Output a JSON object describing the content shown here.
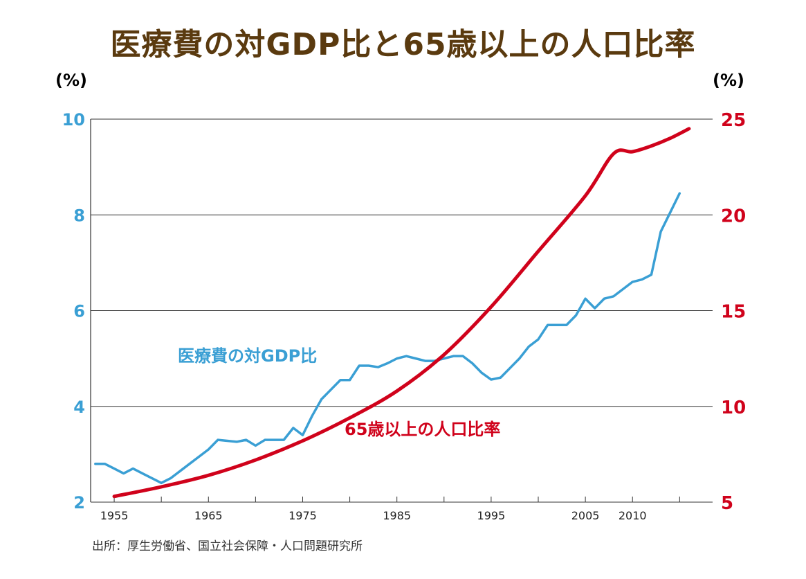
{
  "chart_data": {
    "type": "line",
    "title": "医療費の対GDP比と65歳以上の人口比率",
    "source": "出所：厚生労働省、国立社会保障・人口問題研究所",
    "y_left": {
      "unit": "(%)",
      "range": [
        2,
        10
      ],
      "ticks": [
        "2",
        "4",
        "6",
        "8",
        "10"
      ],
      "color": "#3a9fd4"
    },
    "y_right": {
      "unit": "(%)",
      "range": [
        5,
        25
      ],
      "ticks": [
        "5",
        "10",
        "15",
        "20",
        "25"
      ],
      "color": "#d0021b"
    },
    "x_range": [
      1952.5,
      2018.5
    ],
    "x_ticks": [
      "1955",
      "1965",
      "1975",
      "1985",
      "1995",
      "2005",
      "2010"
    ],
    "grid": true,
    "series": [
      {
        "name": "医療費の対GDP比",
        "axis": "left",
        "color": "#3a9fd4",
        "points": [
          [
            1953,
            2.8
          ],
          [
            1954,
            2.8
          ],
          [
            1955,
            2.7
          ],
          [
            1956,
            2.6
          ],
          [
            1957,
            2.7
          ],
          [
            1958,
            2.6
          ],
          [
            1959,
            2.5
          ],
          [
            1960,
            2.4
          ],
          [
            1961,
            2.5
          ],
          [
            1962,
            2.65
          ],
          [
            1963,
            2.8
          ],
          [
            1964,
            2.95
          ],
          [
            1965,
            3.1
          ],
          [
            1966,
            3.3
          ],
          [
            1967,
            3.28
          ],
          [
            1968,
            3.26
          ],
          [
            1969,
            3.3
          ],
          [
            1970,
            3.18
          ],
          [
            1971,
            3.3
          ],
          [
            1972,
            3.3
          ],
          [
            1973,
            3.3
          ],
          [
            1974,
            3.55
          ],
          [
            1975,
            3.4
          ],
          [
            1976,
            3.8
          ],
          [
            1977,
            4.15
          ],
          [
            1978,
            4.35
          ],
          [
            1979,
            4.55
          ],
          [
            1980,
            4.55
          ],
          [
            1981,
            4.85
          ],
          [
            1982,
            4.85
          ],
          [
            1983,
            4.82
          ],
          [
            1984,
            4.9
          ],
          [
            1985,
            5.0
          ],
          [
            1986,
            5.05
          ],
          [
            1987,
            5.0
          ],
          [
            1988,
            4.95
          ],
          [
            1989,
            4.95
          ],
          [
            1990,
            5.0
          ],
          [
            1991,
            5.05
          ],
          [
            1992,
            5.05
          ],
          [
            1993,
            4.9
          ],
          [
            1994,
            4.7
          ],
          [
            1995,
            4.56
          ],
          [
            1996,
            4.6
          ],
          [
            1997,
            4.8
          ],
          [
            1998,
            5.0
          ],
          [
            1999,
            5.25
          ],
          [
            2000,
            5.4
          ],
          [
            2001,
            5.7
          ],
          [
            2002,
            5.7
          ],
          [
            2003,
            5.7
          ],
          [
            2004,
            5.9
          ],
          [
            2005,
            6.25
          ],
          [
            2006,
            6.05
          ],
          [
            2007,
            6.25
          ],
          [
            2008,
            6.3
          ],
          [
            2009,
            6.45
          ],
          [
            2010,
            6.6
          ],
          [
            2011,
            6.65
          ],
          [
            2012,
            6.75
          ],
          [
            2013,
            7.65
          ],
          [
            2014,
            8.05
          ],
          [
            2015,
            8.45
          ]
        ]
      },
      {
        "name": "65歳以上の人口比率",
        "axis": "right",
        "color": "#d0021b",
        "points": [
          [
            1955,
            5.3
          ],
          [
            1960,
            5.8
          ],
          [
            1965,
            6.4
          ],
          [
            1970,
            7.2
          ],
          [
            1975,
            8.2
          ],
          [
            1980,
            9.4
          ],
          [
            1985,
            10.8
          ],
          [
            1990,
            12.7
          ],
          [
            1995,
            15.2
          ],
          [
            2000,
            18.1
          ],
          [
            2005,
            21.0
          ],
          [
            2008,
            23.2
          ],
          [
            2010,
            23.3
          ],
          [
            2012,
            23.6
          ],
          [
            2014,
            24.0
          ],
          [
            2016,
            24.5
          ]
        ]
      }
    ]
  }
}
